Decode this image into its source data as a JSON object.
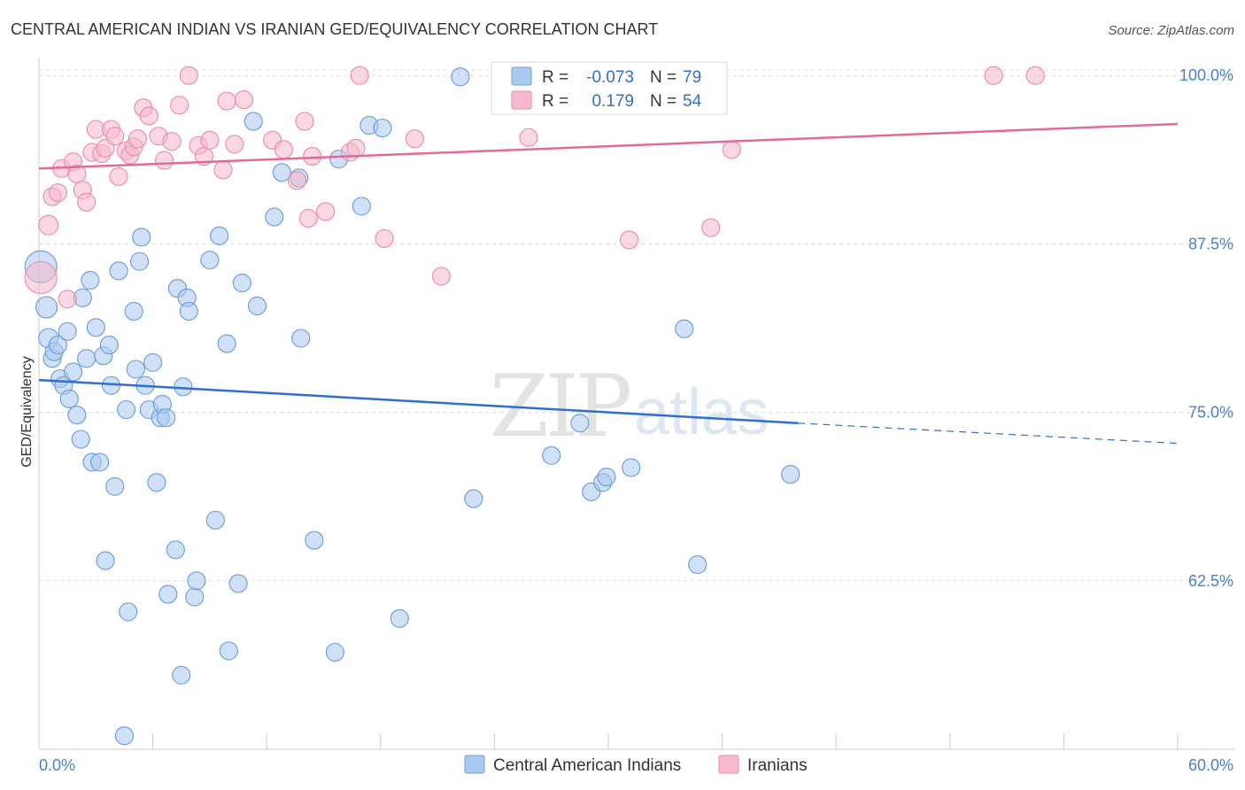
{
  "header": {
    "title": "CENTRAL AMERICAN INDIAN VS IRANIAN GED/EQUIVALENCY CORRELATION CHART",
    "source": "Source: ZipAtlas.com"
  },
  "watermark": {
    "zip": "ZIP",
    "atlas": "atlas"
  },
  "legend": {
    "rows": [
      {
        "r_label": "R =",
        "r_value": "-0.073",
        "n_label": "N =",
        "n_value": "79",
        "color": "#a9c9f0"
      },
      {
        "r_label": "R =",
        "r_value": "0.179",
        "n_label": "N =",
        "n_value": "54",
        "color": "#f6b8cb"
      }
    ]
  },
  "bottom_legend": [
    {
      "label": "Central American Indians",
      "color": "#a9c9f0"
    },
    {
      "label": "Iranians",
      "color": "#f6b8cb"
    }
  ],
  "chart_data": {
    "type": "scatter",
    "title": "CENTRAL AMERICAN INDIAN VS IRANIAN GED/EQUIVALENCY CORRELATION CHART",
    "xlabel": "",
    "ylabel": "GED/Equivalency",
    "xlim": [
      0,
      60
    ],
    "ylim": [
      50,
      101
    ],
    "x_tick_labels": [
      "0.0%",
      "60.0%"
    ],
    "y_ticks": [
      62.5,
      75.0,
      87.5,
      100.0
    ],
    "y_tick_labels": [
      "62.5%",
      "75.0%",
      "87.5%",
      "100.0%"
    ],
    "grid": true,
    "legend_position": "top-center",
    "series": [
      {
        "name": "Central American Indians",
        "color": "#a9c9f0",
        "stroke": "#6fa0dd",
        "line_color": "#2f6fcf",
        "trend": {
          "x0": 0,
          "y0": 77.4,
          "x1": 40,
          "y1": 74.2,
          "dash_x1": 60,
          "dash_y1": 72.7
        },
        "points": [
          [
            0.1,
            85.8,
            18
          ],
          [
            0.4,
            82.8,
            12
          ],
          [
            0.5,
            80.5,
            11
          ],
          [
            0.7,
            79.0,
            10
          ],
          [
            0.8,
            79.5,
            10
          ],
          [
            1.0,
            80.0,
            10
          ],
          [
            1.1,
            77.5,
            10
          ],
          [
            1.3,
            77.0,
            10
          ],
          [
            1.5,
            81.0,
            10
          ],
          [
            1.6,
            76.0,
            10
          ],
          [
            1.8,
            78.0,
            10
          ],
          [
            2.0,
            74.8,
            10
          ],
          [
            2.2,
            73.0,
            10
          ],
          [
            2.3,
            83.5,
            10
          ],
          [
            2.5,
            79.0,
            10
          ],
          [
            2.7,
            84.8,
            10
          ],
          [
            2.8,
            71.3,
            10
          ],
          [
            3.0,
            81.3,
            10
          ],
          [
            3.2,
            71.3,
            10
          ],
          [
            3.4,
            79.2,
            10
          ],
          [
            3.5,
            64.0,
            10
          ],
          [
            3.7,
            80.0,
            10
          ],
          [
            3.8,
            77.0,
            10
          ],
          [
            4.0,
            69.5,
            10
          ],
          [
            4.2,
            85.5,
            10
          ],
          [
            4.5,
            51.0,
            10
          ],
          [
            4.6,
            75.2,
            10
          ],
          [
            4.7,
            60.2,
            10
          ],
          [
            5.0,
            82.5,
            10
          ],
          [
            5.1,
            78.2,
            10
          ],
          [
            5.3,
            86.2,
            10
          ],
          [
            5.4,
            88.0,
            10
          ],
          [
            5.6,
            77.0,
            10
          ],
          [
            5.8,
            75.2,
            10
          ],
          [
            6.0,
            78.7,
            10
          ],
          [
            6.2,
            69.8,
            10
          ],
          [
            6.4,
            74.6,
            10
          ],
          [
            6.5,
            75.6,
            10
          ],
          [
            6.7,
            74.6,
            10
          ],
          [
            6.8,
            61.5,
            10
          ],
          [
            7.2,
            64.8,
            10
          ],
          [
            7.3,
            84.2,
            10
          ],
          [
            7.5,
            55.5,
            10
          ],
          [
            7.6,
            76.9,
            10
          ],
          [
            7.8,
            83.5,
            10
          ],
          [
            7.9,
            82.5,
            10
          ],
          [
            8.2,
            61.3,
            10
          ],
          [
            8.3,
            62.5,
            10
          ],
          [
            9.0,
            86.3,
            10
          ],
          [
            9.3,
            67.0,
            10
          ],
          [
            9.5,
            88.1,
            10
          ],
          [
            9.9,
            80.1,
            10
          ],
          [
            10.0,
            57.3,
            10
          ],
          [
            10.5,
            62.3,
            10
          ],
          [
            10.7,
            84.6,
            10
          ],
          [
            11.3,
            96.6,
            10
          ],
          [
            11.5,
            82.9,
            10
          ],
          [
            12.4,
            89.5,
            10
          ],
          [
            12.8,
            92.8,
            10
          ],
          [
            13.7,
            92.4,
            10
          ],
          [
            13.8,
            80.5,
            10
          ],
          [
            14.5,
            65.5,
            10
          ],
          [
            15.6,
            57.2,
            10
          ],
          [
            15.8,
            93.8,
            10
          ],
          [
            17.0,
            90.3,
            10
          ],
          [
            17.4,
            96.3,
            10
          ],
          [
            18.1,
            96.1,
            10
          ],
          [
            19.0,
            59.7,
            10
          ],
          [
            22.2,
            99.9,
            10
          ],
          [
            22.9,
            68.6,
            10
          ],
          [
            27.0,
            71.8,
            10
          ],
          [
            28.5,
            74.2,
            10
          ],
          [
            29.1,
            69.1,
            10
          ],
          [
            29.7,
            69.8,
            10
          ],
          [
            29.9,
            70.2,
            10
          ],
          [
            31.2,
            70.9,
            10
          ],
          [
            34.0,
            81.2,
            10
          ],
          [
            34.7,
            63.7,
            10
          ],
          [
            39.6,
            70.4,
            10
          ]
        ]
      },
      {
        "name": "Iranians",
        "color": "#f6b8cb",
        "stroke": "#eb8fac",
        "line_color": "#e36a92",
        "trend": {
          "x0": 0,
          "y0": 93.1,
          "x1": 60,
          "y1": 96.4
        },
        "points": [
          [
            0.1,
            85.0,
            18
          ],
          [
            0.5,
            88.9,
            11
          ],
          [
            0.7,
            91.0,
            10
          ],
          [
            1.0,
            91.3,
            10
          ],
          [
            1.2,
            93.1,
            10
          ],
          [
            1.5,
            83.4,
            10
          ],
          [
            1.8,
            93.6,
            10
          ],
          [
            2.0,
            92.7,
            10
          ],
          [
            2.3,
            91.5,
            10
          ],
          [
            2.5,
            90.6,
            10
          ],
          [
            2.8,
            94.3,
            10
          ],
          [
            3.0,
            96.0,
            10
          ],
          [
            3.3,
            94.2,
            10
          ],
          [
            3.5,
            94.6,
            10
          ],
          [
            3.8,
            96.0,
            10
          ],
          [
            4.0,
            95.5,
            10
          ],
          [
            4.2,
            92.5,
            10
          ],
          [
            4.6,
            94.4,
            10
          ],
          [
            4.8,
            94.1,
            10
          ],
          [
            5.0,
            94.7,
            10
          ],
          [
            5.2,
            95.3,
            10
          ],
          [
            5.5,
            97.6,
            10
          ],
          [
            5.8,
            97.0,
            10
          ],
          [
            6.3,
            95.5,
            10
          ],
          [
            6.6,
            93.7,
            10
          ],
          [
            7.0,
            95.1,
            10
          ],
          [
            7.4,
            97.8,
            10
          ],
          [
            7.9,
            100.0,
            10
          ],
          [
            8.4,
            94.8,
            10
          ],
          [
            8.7,
            94.0,
            10
          ],
          [
            9.0,
            95.2,
            10
          ],
          [
            9.7,
            93.0,
            10
          ],
          [
            9.9,
            98.1,
            10
          ],
          [
            10.3,
            94.9,
            10
          ],
          [
            10.8,
            98.2,
            10
          ],
          [
            12.3,
            95.2,
            10
          ],
          [
            12.9,
            94.5,
            10
          ],
          [
            13.6,
            92.2,
            10
          ],
          [
            14.0,
            96.6,
            10
          ],
          [
            14.2,
            89.4,
            10
          ],
          [
            14.4,
            94.0,
            10
          ],
          [
            15.1,
            89.9,
            10
          ],
          [
            16.4,
            94.3,
            10
          ],
          [
            16.7,
            94.6,
            10
          ],
          [
            16.9,
            100.0,
            10
          ],
          [
            18.2,
            87.9,
            10
          ],
          [
            19.8,
            95.3,
            10
          ],
          [
            21.2,
            85.1,
            10
          ],
          [
            25.8,
            95.4,
            10
          ],
          [
            31.1,
            87.8,
            10
          ],
          [
            35.4,
            88.7,
            10
          ],
          [
            36.5,
            94.5,
            10
          ],
          [
            50.3,
            100.0,
            10
          ],
          [
            52.5,
            100.0,
            10
          ]
        ]
      }
    ]
  }
}
